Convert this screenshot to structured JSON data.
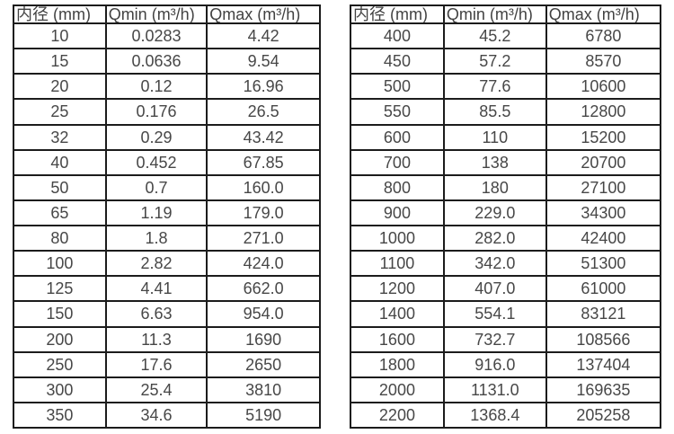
{
  "page": {
    "background_color": "#ffffff",
    "text_color": "#474747",
    "border_color": "#1c1c1c"
  },
  "tables": [
    {
      "title": "small-diameter-flow-table",
      "headers": [
        "内径 (mm)",
        "Qmin (m³/h)",
        "Qmax (m³/h)"
      ],
      "rows": [
        [
          "10",
          "0.0283",
          "4.42"
        ],
        [
          "15",
          "0.0636",
          "9.54"
        ],
        [
          "20",
          "0.12",
          "16.96"
        ],
        [
          "25",
          "0.176",
          "26.5"
        ],
        [
          "32",
          "0.29",
          "43.42"
        ],
        [
          "40",
          "0.452",
          "67.85"
        ],
        [
          "50",
          "0.7",
          "160.0"
        ],
        [
          "65",
          "1.19",
          "179.0"
        ],
        [
          "80",
          "1.8",
          "271.0"
        ],
        [
          "100",
          "2.82",
          "424.0"
        ],
        [
          "125",
          "4.41",
          "662.0"
        ],
        [
          "150",
          "6.63",
          "954.0"
        ],
        [
          "200",
          "11.3",
          "1690"
        ],
        [
          "250",
          "17.6",
          "2650"
        ],
        [
          "300",
          "25.4",
          "3810"
        ],
        [
          "350",
          "34.6",
          "5190"
        ]
      ]
    },
    {
      "title": "large-diameter-flow-table",
      "headers": [
        "内径 (mm)",
        "Qmin (m³/h)",
        "Qmax (m³/h)"
      ],
      "rows": [
        [
          "400",
          "45.2",
          "6780"
        ],
        [
          "450",
          "57.2",
          "8570"
        ],
        [
          "500",
          "77.6",
          "10600"
        ],
        [
          "550",
          "85.5",
          "12800"
        ],
        [
          "600",
          "110",
          "15200"
        ],
        [
          "700",
          "138",
          "20700"
        ],
        [
          "800",
          "180",
          "27100"
        ],
        [
          "900",
          "229.0",
          "34300"
        ],
        [
          "1000",
          "282.0",
          "42400"
        ],
        [
          "1100",
          "342.0",
          "51300"
        ],
        [
          "1200",
          "407.0",
          "61000"
        ],
        [
          "1400",
          "554.1",
          "83121"
        ],
        [
          "1600",
          "732.7",
          "108566"
        ],
        [
          "1800",
          "916.0",
          "137404"
        ],
        [
          "2000",
          "1131.0",
          "169635"
        ],
        [
          "2200",
          "1368.4",
          "205258"
        ]
      ]
    }
  ]
}
